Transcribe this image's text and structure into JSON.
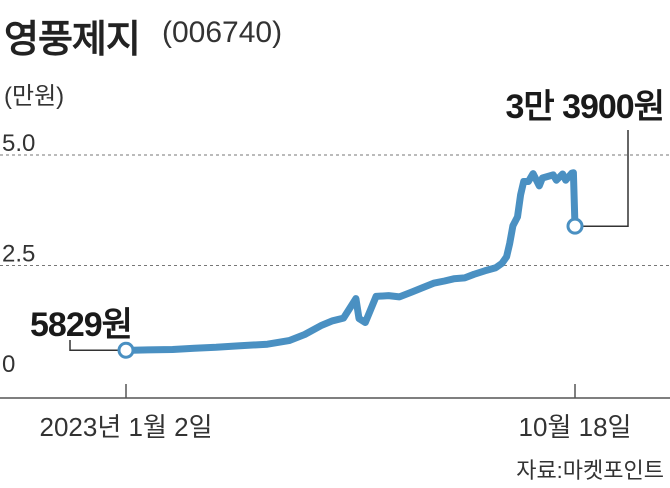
{
  "chart_data": {
    "type": "line",
    "title": "영풍제지",
    "subtitle": "(006740)",
    "ylabel": "(만원)",
    "ylim": [
      0,
      5.0
    ],
    "yticks": [
      {
        "value": 5.0,
        "label": "5.0"
      },
      {
        "value": 2.5,
        "label": "2.5"
      },
      {
        "value": 0,
        "label": "0"
      }
    ],
    "grid": "dashed horizontal",
    "x_labels": [
      "2023년 1월 2일",
      "10월 18일"
    ],
    "series": [
      {
        "color": "#4a90c2",
        "x": [
          "2023-01-02",
          "2023-01-16",
          "2023-02-01",
          "2023-02-15",
          "2023-03-01",
          "2023-03-15",
          "2023-04-03",
          "2023-04-17",
          "2023-04-27",
          "2023-05-08",
          "2023-05-15",
          "2023-05-22",
          "2023-05-30",
          "2023-06-01",
          "2023-06-05",
          "2023-06-12",
          "2023-06-20",
          "2023-06-27",
          "2023-07-05",
          "2023-07-12",
          "2023-07-19",
          "2023-07-26",
          "2023-08-01",
          "2023-08-08",
          "2023-08-14",
          "2023-08-21",
          "2023-08-28",
          "2023-09-01",
          "2023-09-04",
          "2023-09-06",
          "2023-09-08",
          "2023-09-11",
          "2023-09-13",
          "2023-09-15",
          "2023-09-18",
          "2023-09-21",
          "2023-09-25",
          "2023-09-27",
          "2023-10-04",
          "2023-10-06",
          "2023-10-10",
          "2023-10-12",
          "2023-10-16",
          "2023-10-17",
          "2023-10-18"
        ],
        "values": [
          0.58,
          0.59,
          0.6,
          0.63,
          0.65,
          0.68,
          0.72,
          0.8,
          0.94,
          1.15,
          1.25,
          1.31,
          1.75,
          1.3,
          1.21,
          1.8,
          1.82,
          1.79,
          1.9,
          2.0,
          2.1,
          2.15,
          2.2,
          2.22,
          2.3,
          2.38,
          2.45,
          2.55,
          2.7,
          3.0,
          3.4,
          3.6,
          4.1,
          4.4,
          4.4,
          4.58,
          4.3,
          4.48,
          4.55,
          4.43,
          4.57,
          4.43,
          4.59,
          4.6,
          3.39
        ]
      }
    ],
    "annotations": [
      {
        "x": "2023-01-02",
        "value": 0.5829,
        "label": "5829원"
      },
      {
        "x": "2023-10-18",
        "value": 3.39,
        "label": "3만 3900원"
      }
    ],
    "source": "자료:마켓포인트"
  }
}
